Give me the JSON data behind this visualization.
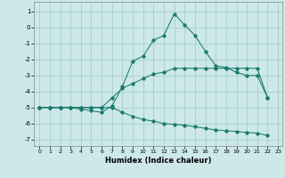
{
  "xlabel": "Humidex (Indice chaleur)",
  "bg_color": "#cce8e8",
  "grid_color": "#aacece",
  "line_color": "#1a7a6e",
  "xlim_min": -0.5,
  "xlim_max": 23.4,
  "ylim_min": -7.4,
  "ylim_max": 1.6,
  "xticks": [
    0,
    1,
    2,
    3,
    4,
    5,
    6,
    7,
    8,
    9,
    10,
    11,
    12,
    13,
    14,
    15,
    16,
    17,
    18,
    19,
    20,
    21,
    22,
    23
  ],
  "yticks": [
    -7,
    -6,
    -5,
    -4,
    -3,
    -2,
    -1,
    0,
    1
  ],
  "series1_x": [
    0,
    1,
    2,
    3,
    4,
    5,
    6,
    7,
    8,
    9,
    10,
    11,
    12,
    13,
    14,
    15,
    16,
    17,
    18,
    19,
    20,
    21,
    22
  ],
  "series1_y": [
    -5.0,
    -5.0,
    -5.0,
    -5.0,
    -5.1,
    -5.2,
    -5.3,
    -4.9,
    -3.7,
    -2.1,
    -1.8,
    -0.8,
    -0.5,
    0.85,
    0.15,
    -0.5,
    -1.5,
    -2.4,
    -2.5,
    -2.8,
    -3.0,
    -3.0,
    -4.4
  ],
  "series2_x": [
    0,
    1,
    2,
    3,
    4,
    5,
    6,
    7,
    8,
    9,
    10,
    11,
    12,
    13,
    14,
    15,
    16,
    17,
    18,
    19,
    20,
    21,
    22
  ],
  "series2_y": [
    -5.0,
    -5.0,
    -5.0,
    -5.0,
    -5.0,
    -5.0,
    -5.0,
    -4.4,
    -3.8,
    -3.5,
    -3.2,
    -2.9,
    -2.8,
    -2.55,
    -2.55,
    -2.55,
    -2.55,
    -2.55,
    -2.55,
    -2.55,
    -2.55,
    -2.55,
    -4.4
  ],
  "series3_x": [
    0,
    1,
    2,
    3,
    4,
    5,
    6,
    7,
    8,
    9,
    10,
    11,
    12,
    13,
    14,
    15,
    16,
    17,
    18,
    19,
    20,
    21,
    22
  ],
  "series3_y": [
    -5.0,
    -5.0,
    -5.0,
    -5.0,
    -5.0,
    -5.0,
    -5.0,
    -5.0,
    -5.3,
    -5.55,
    -5.75,
    -5.85,
    -6.0,
    -6.05,
    -6.1,
    -6.2,
    -6.3,
    -6.4,
    -6.45,
    -6.5,
    -6.55,
    -6.6,
    -6.75
  ]
}
